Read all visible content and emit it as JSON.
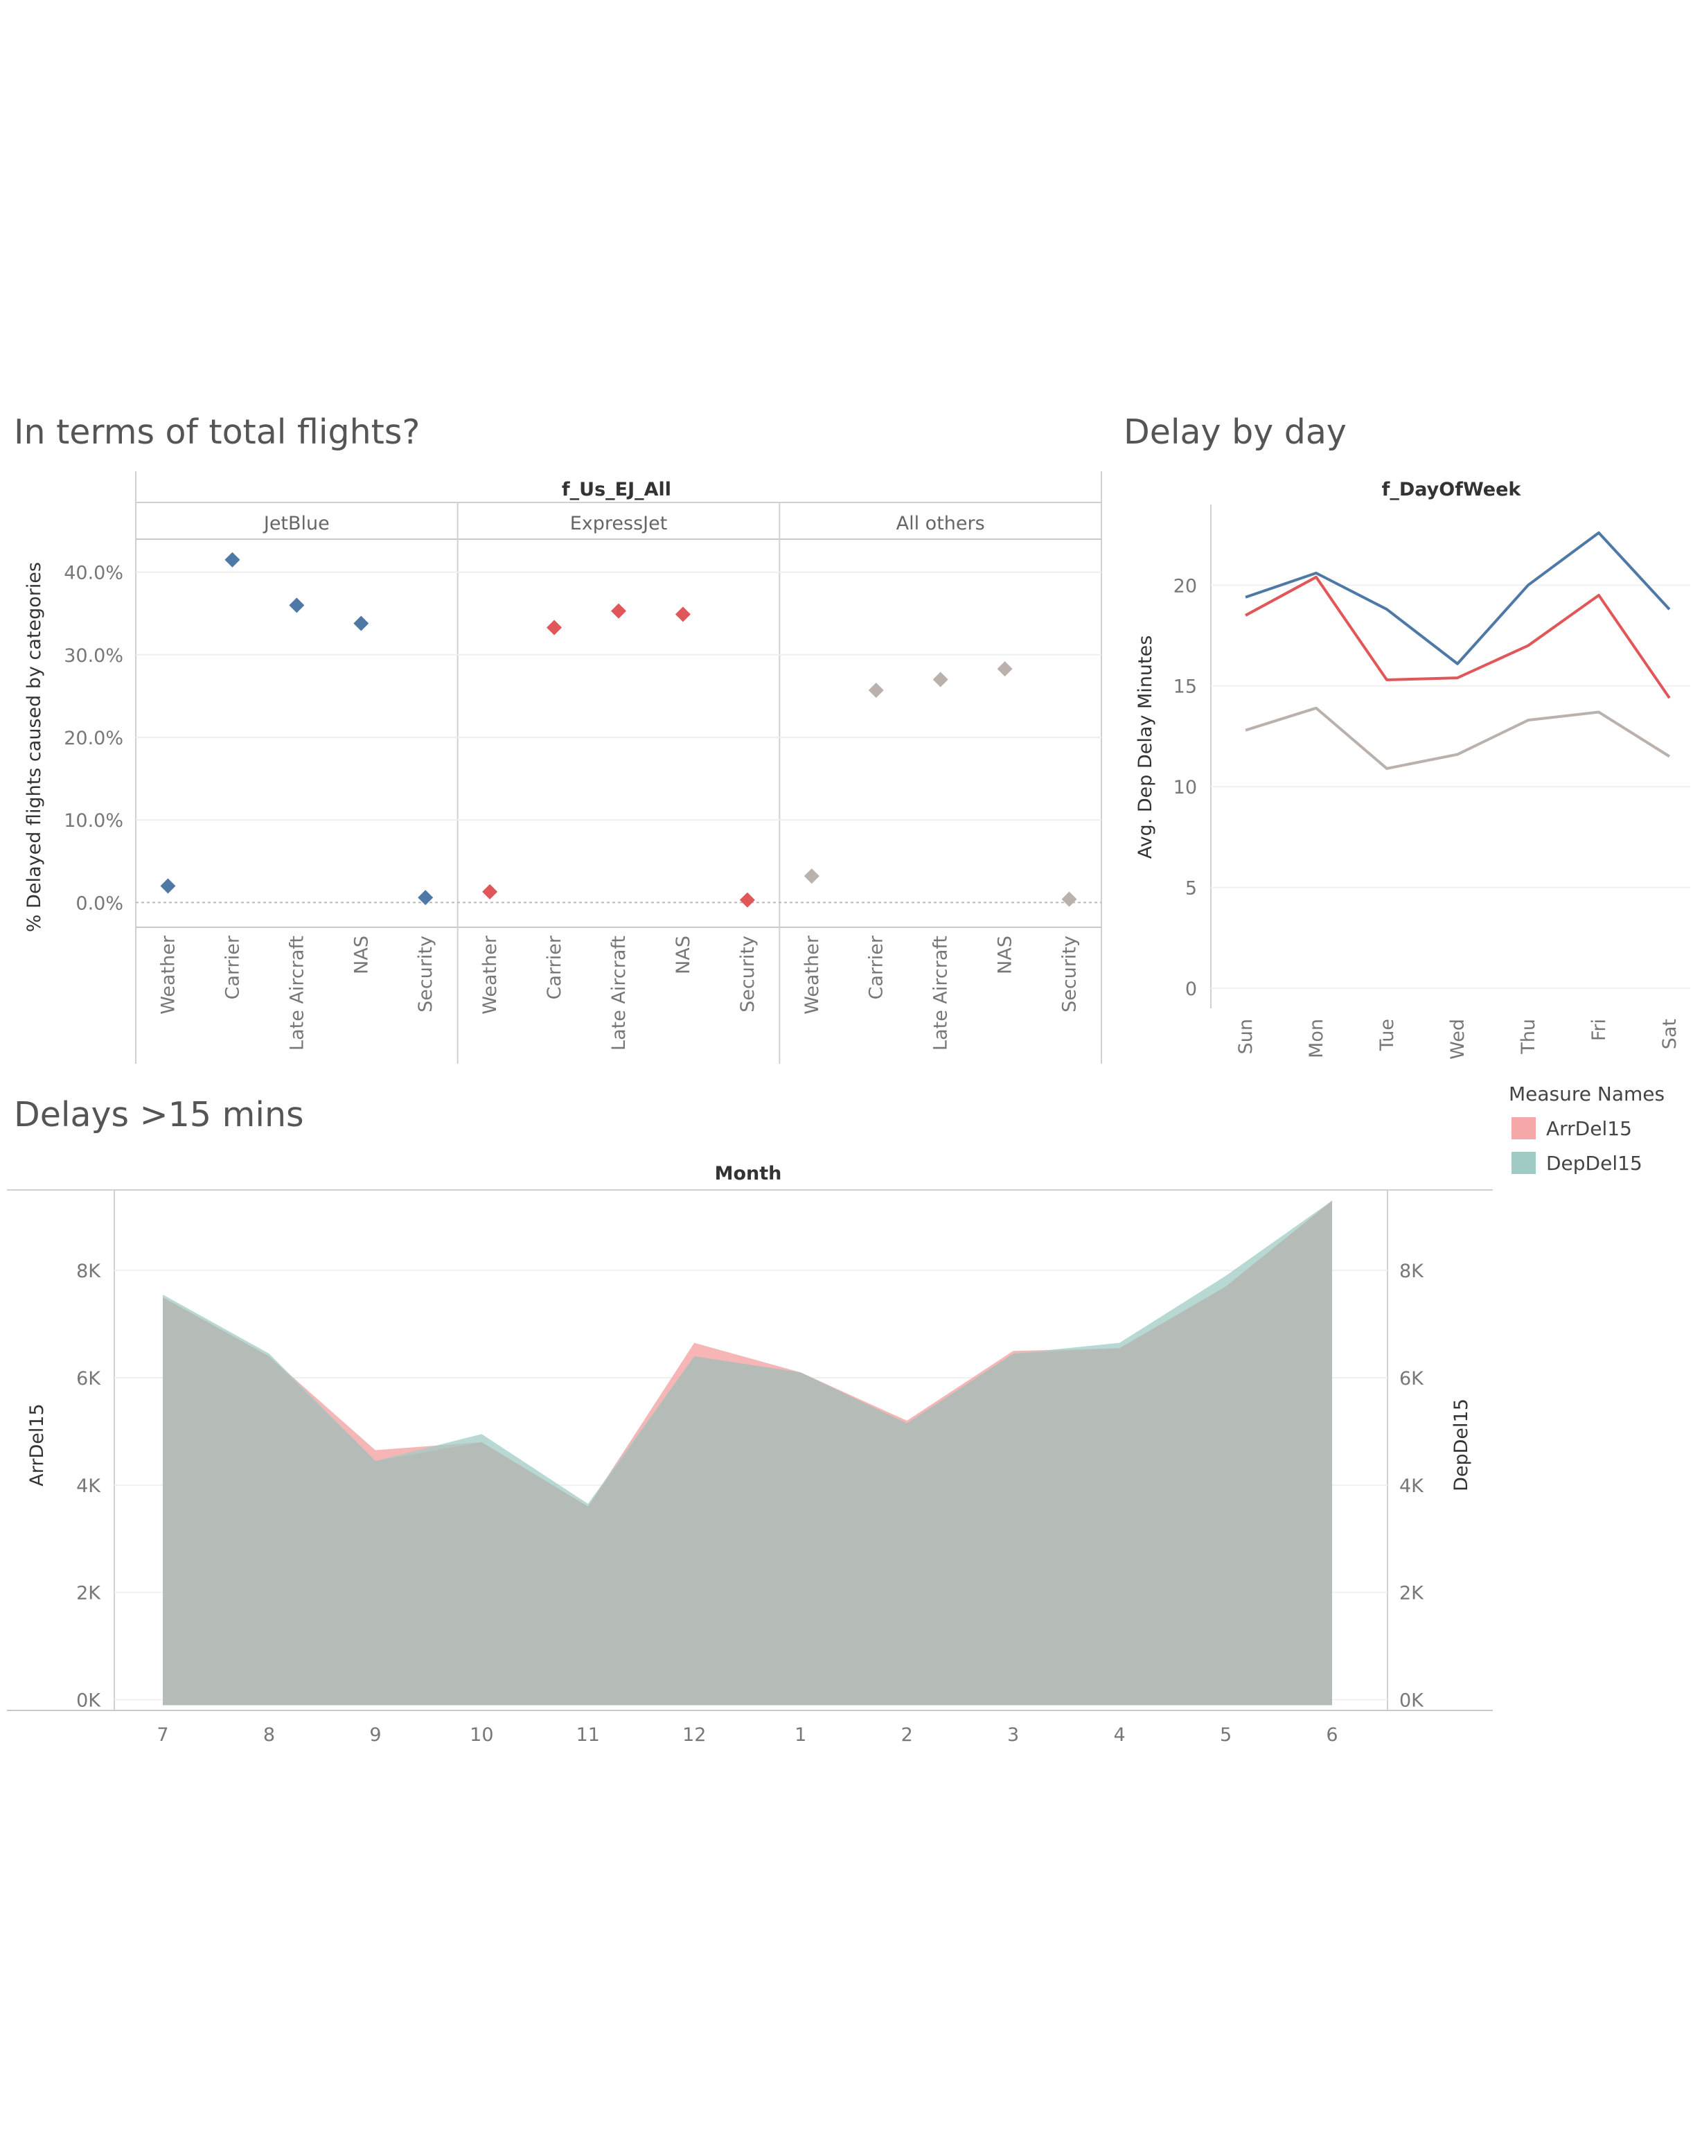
{
  "chart_data": [
    {
      "type": "scatter",
      "title": "In terms of total flights?",
      "column_header": "f_Us_EJ_All",
      "panels": [
        "JetBlue",
        "ExpressJet",
        "All others"
      ],
      "categories": [
        "Weather",
        "Carrier",
        "Late Aircraft",
        "NAS",
        "Security"
      ],
      "ylabel": "% Delayed flights caused by categories",
      "yticks": [
        "0.0%",
        "10.0%",
        "20.0%",
        "30.0%",
        "40.0%"
      ],
      "ylim": [
        -3,
        44
      ],
      "series": [
        {
          "name": "JetBlue",
          "color": "#4e79a7",
          "values": [
            2.0,
            41.5,
            36.0,
            33.8,
            0.6
          ]
        },
        {
          "name": "ExpressJet",
          "color": "#e15759",
          "values": [
            1.3,
            33.3,
            35.3,
            34.9,
            0.3
          ]
        },
        {
          "name": "All others",
          "color": "#bab0ac",
          "values": [
            3.2,
            25.7,
            27.0,
            28.3,
            0.4
          ]
        }
      ]
    },
    {
      "type": "line",
      "title": "Delay by day",
      "column_header": "f_DayOfWeek",
      "ylabel": "Avg. Dep Delay Minutes",
      "categories": [
        "Sun",
        "Mon",
        "Tue",
        "Wed",
        "Thu",
        "Fri",
        "Sat"
      ],
      "yticks": [
        "0",
        "5",
        "10",
        "15",
        "20"
      ],
      "ylim": [
        -1,
        24
      ],
      "series": [
        {
          "color": "#4e79a7",
          "values": [
            19.4,
            20.6,
            18.8,
            16.1,
            20.0,
            22.6,
            18.8
          ]
        },
        {
          "color": "#e15759",
          "values": [
            18.5,
            20.4,
            15.3,
            15.4,
            17.0,
            19.5,
            14.4
          ]
        },
        {
          "color": "#bab0ac",
          "values": [
            12.8,
            13.9,
            10.9,
            11.6,
            13.3,
            13.7,
            11.5
          ]
        }
      ]
    },
    {
      "type": "area",
      "title": "Delays >15 mins",
      "column_header": "Month",
      "categories": [
        "7",
        "8",
        "9",
        "10",
        "11",
        "12",
        "1",
        "2",
        "3",
        "4",
        "5",
        "6"
      ],
      "ylabel_left": "ArrDel15",
      "ylabel_right": "DepDel15",
      "yticks": [
        "0K",
        "2K",
        "4K",
        "6K",
        "8K"
      ],
      "ylim": [
        -200,
        9500
      ],
      "legend_title": "Measure Names",
      "legend_position": "right",
      "series": [
        {
          "name": "ArrDel15",
          "color": "#f4a9a8",
          "values": [
            7500,
            6400,
            4650,
            4800,
            3600,
            6650,
            6100,
            5200,
            6500,
            6550,
            7700,
            9300
          ]
        },
        {
          "name": "DepDel15",
          "color": "#a0cbc4",
          "values": [
            7550,
            6450,
            4450,
            4950,
            3650,
            6400,
            6100,
            5150,
            6450,
            6650,
            7900,
            9300
          ]
        }
      ]
    }
  ]
}
